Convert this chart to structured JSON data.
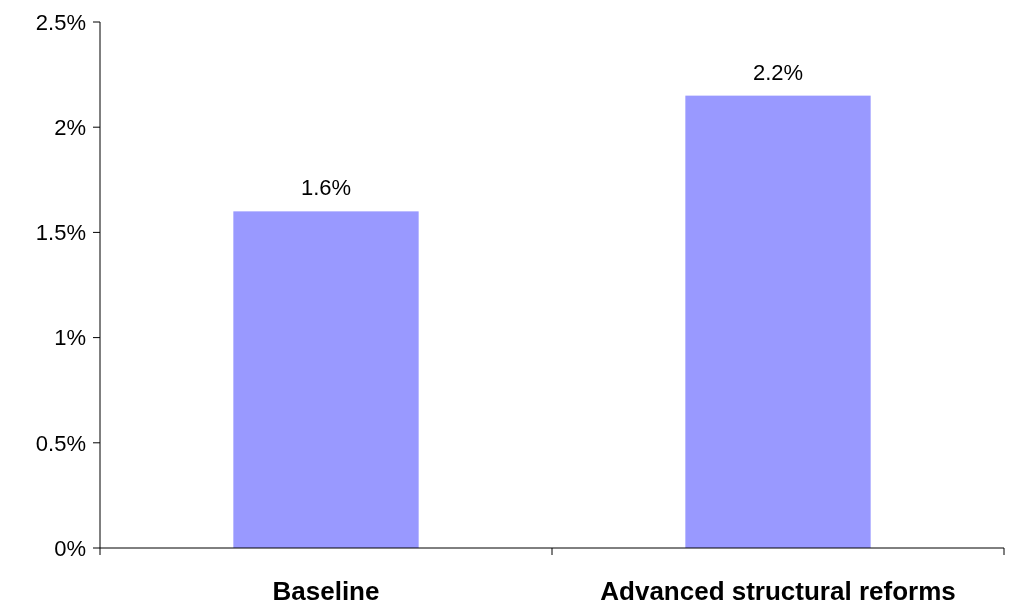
{
  "chart_data": {
    "type": "bar",
    "categories": [
      "Baseline",
      "Advanced structural reforms"
    ],
    "values": [
      1.6,
      2.15
    ],
    "value_labels": [
      "1.6%",
      "2.2%"
    ],
    "color": "#9999ff",
    "ylim": [
      0,
      2.5
    ],
    "yticks": [
      {
        "value": 0,
        "label": "0%"
      },
      {
        "value": 0.5,
        "label": "0.5%"
      },
      {
        "value": 1,
        "label": "1%"
      },
      {
        "value": 1.5,
        "label": "1.5%"
      },
      {
        "value": 2,
        "label": "2%"
      },
      {
        "value": 2.5,
        "label": "2.5%"
      }
    ],
    "grid": false
  }
}
